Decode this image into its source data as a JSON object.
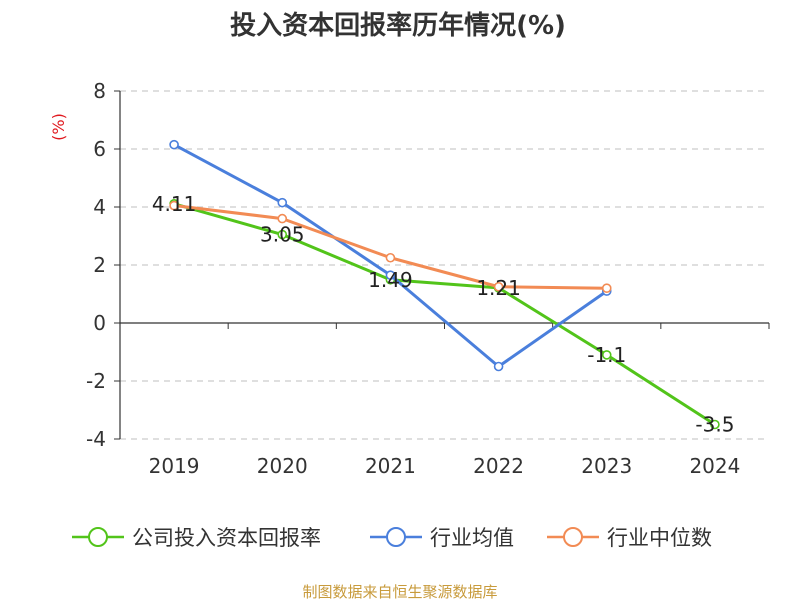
{
  "chart_data": {
    "type": "line",
    "title": "投入资本回报率历年情况(%)",
    "ylabel": "(%)",
    "xlabel": "",
    "categories": [
      "2019",
      "2020",
      "2021",
      "2022",
      "2023",
      "2024"
    ],
    "ylim": [
      -4,
      8
    ],
    "yticks": [
      -4,
      -2,
      0,
      2,
      4,
      6,
      8
    ],
    "ytick_labels": [
      "-4",
      "-2",
      "0",
      "2",
      "4",
      "6",
      "8"
    ],
    "grid": true,
    "legend_position": "bottom",
    "series": [
      {
        "name": "公司投入资本回报率",
        "color": "#52c41a",
        "values": [
          4.11,
          3.05,
          1.49,
          1.21,
          -1.1,
          -3.5
        ],
        "labels": [
          "4.11",
          "3.05",
          "1.49",
          "1.21",
          "-1.1",
          "-3.5"
        ]
      },
      {
        "name": "行业均值",
        "color": "#4a7fdc",
        "values": [
          6.15,
          4.15,
          1.65,
          -1.5,
          1.1,
          null
        ]
      },
      {
        "name": "行业中位数",
        "color": "#f28b54",
        "values": [
          4.05,
          3.6,
          2.25,
          1.25,
          1.2,
          null
        ]
      }
    ],
    "source": "制图数据来自恒生聚源数据库"
  }
}
